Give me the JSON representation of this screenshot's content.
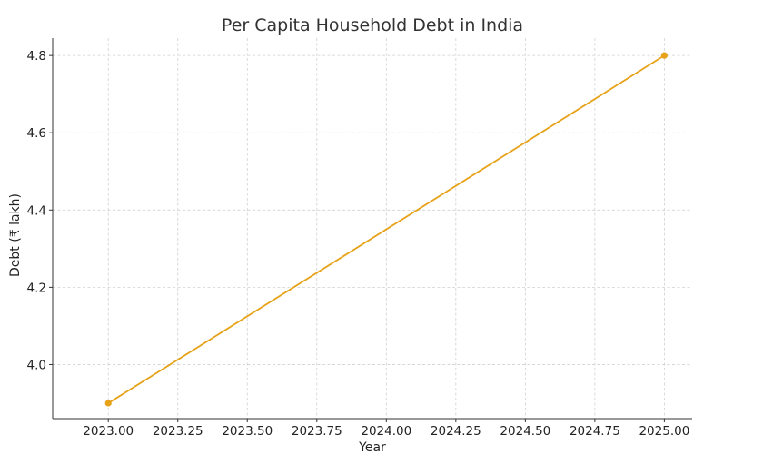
{
  "chart_data": {
    "type": "line",
    "title": "Per Capita Household Debt in India",
    "xlabel": "Year",
    "ylabel": "Debt (₹ lakh)",
    "xlim": [
      2022.8,
      2025.1
    ],
    "ylim": [
      3.86,
      4.845
    ],
    "x_ticks": [
      2023.0,
      2023.25,
      2023.5,
      2023.75,
      2024.0,
      2024.25,
      2024.5,
      2024.75,
      2025.0
    ],
    "x_tick_labels": [
      "2023.00",
      "2023.25",
      "2023.50",
      "2023.75",
      "2024.00",
      "2024.25",
      "2024.50",
      "2024.75",
      "2025.00"
    ],
    "y_ticks": [
      4.0,
      4.2,
      4.4,
      4.6,
      4.8
    ],
    "y_tick_labels": [
      "4.0",
      "4.2",
      "4.4",
      "4.6",
      "4.8"
    ],
    "grid": true,
    "series": [
      {
        "color": "#e6a219",
        "x": [
          2023,
          2025
        ],
        "y": [
          3.9,
          4.8
        ]
      }
    ]
  }
}
